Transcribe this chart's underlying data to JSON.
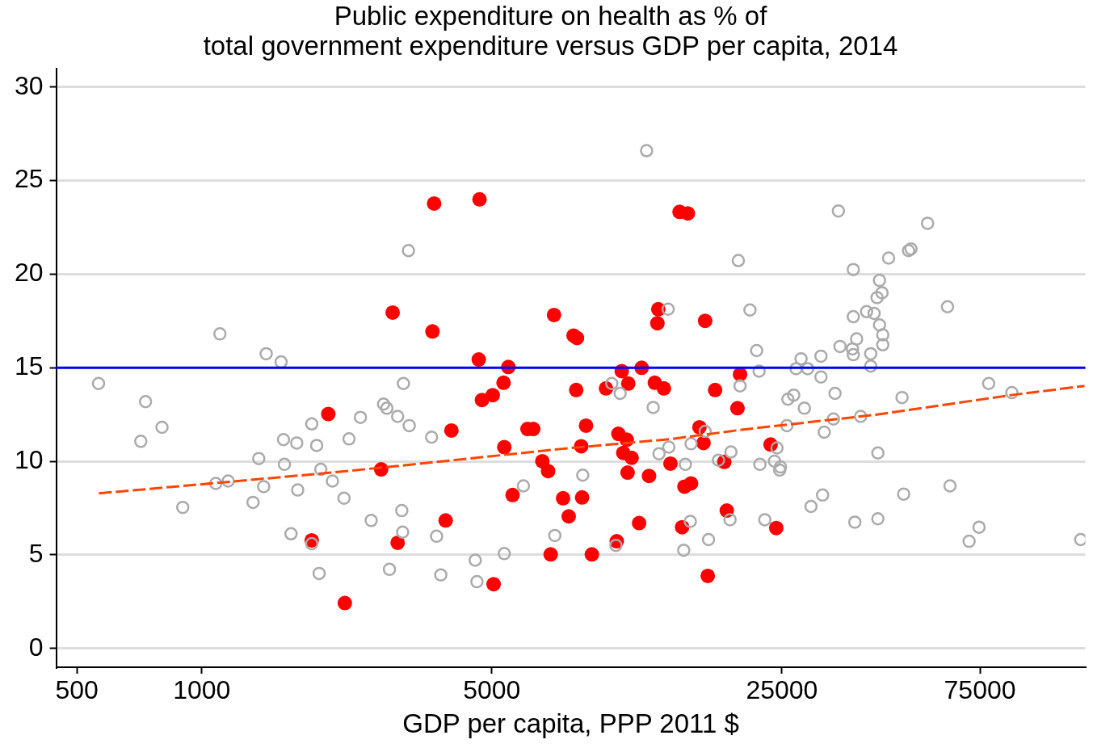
{
  "chart_data": {
    "type": "scatter",
    "title": "Public expenditure on health as % of\ntotal government expenditure versus GDP per capita, 2014",
    "xlabel": "GDP per capita, PPP 2011 $",
    "log": "x",
    "xlim": [
      446,
      134600
    ],
    "xticks": [
      500,
      1000,
      5000,
      25000,
      75000
    ],
    "ylim": [
      -1,
      31
    ],
    "yticks": [
      0,
      5,
      10,
      15,
      20,
      25,
      30
    ],
    "grid": "y",
    "legend": false,
    "marker": "circle",
    "ref_lines": [
      {
        "axis": "y",
        "value": 15,
        "color": "#0000ff"
      }
    ],
    "series": [
      {
        "color": "#aaaaaa",
        "x": [
          564,
          732,
          713,
          802,
          900,
          1081,
          1158,
          1106,
          1372,
          1410,
          1329,
          1430,
          1553,
          1574,
          1582,
          1641,
          1694,
          1703,
          1841,
          1841,
          1892,
          1936,
          1918,
          2065,
          2202,
          2264,
          2412,
          2560,
          2742,
          2793,
          2965,
          2833,
          3062,
          3034,
          3048,
          3162,
          3148,
          3580,
          3680,
          3767,
          4560,
          4603,
          5358,
          5957,
          7092,
          8279,
          9727,
          10190,
          9954,
          11800,
          12240,
          13350,
          12640,
          13300,
          15100,
          14630,
          16330,
          17580,
          18840,
          15040,
          16640,
          14500,
          18750,
          19820,
          19630,
          20940,
          21730,
          22030,
          27050,
          28840,
          31050,
          27800,
          31050,
          34200,
          56100,
          45190,
          50470,
          51170,
          37150,
          42960,
          43560,
          42390,
          62660,
          39990,
          41690,
          37150,
          42960,
          43750,
          43750,
          37840,
          34510,
          36980,
          37150,
          40920,
          40920,
          25840,
          26690,
          33570,
          48680,
          78740,
          89540,
          28320,
          25700,
          33270,
          38700,
          31620,
          24330,
          42580,
          22130,
          23990,
          24800,
          24690,
          22740,
          29380,
          31330,
          37470,
          42580,
          49130,
          63530,
          74640,
          70630,
          131200
        ],
        "values": [
          14.16,
          13.19,
          11.07,
          11.82,
          7.54,
          8.82,
          8.95,
          16.81,
          10.15,
          8.65,
          7.81,
          15.75,
          15.31,
          11.16,
          9.84,
          6.13,
          10.98,
          8.47,
          12.0,
          5.6,
          10.85,
          9.57,
          4.01,
          8.95,
          8.03,
          11.2,
          12.35,
          6.84,
          13.06,
          12.84,
          12.4,
          4.23,
          14.16,
          7.37,
          6.22,
          11.91,
          21.26,
          11.29,
          6.0,
          3.93,
          4.72,
          3.57,
          5.07,
          8.69,
          6.04,
          9.26,
          14.16,
          13.63,
          5.51,
          26.6,
          12.88,
          10.76,
          10.41,
          18.13,
          10.94,
          9.84,
          11.6,
          10.06,
          10.5,
          6.79,
          5.82,
          5.25,
          6.88,
          14.03,
          20.73,
          18.09,
          15.92,
          14.82,
          14.95,
          14.95,
          15.62,
          15.48,
          14.51,
          23.38,
          22.72,
          20.86,
          21.26,
          21.35,
          20.25,
          19.67,
          19.01,
          18.75,
          18.26,
          18.0,
          17.91,
          17.73,
          17.29,
          16.76,
          16.23,
          16.54,
          16.14,
          16.01,
          15.7,
          15.75,
          15.09,
          13.32,
          13.54,
          13.63,
          13.41,
          14.16,
          13.67,
          12.84,
          11.91,
          12.26,
          12.4,
          11.56,
          10.72,
          10.45,
          9.84,
          10.01,
          9.7,
          9.53,
          6.88,
          7.59,
          8.2,
          6.75,
          6.93,
          8.25,
          8.69,
          6.48,
          5.73,
          5.82
        ]
      },
      {
        "color": "#ff0000",
        "x": [
          2884,
          3630,
          4670,
          14170,
          14830,
          3597,
          7060,
          7870,
          8020,
          12590,
          12530,
          16330,
          4650,
          5480,
          10280,
          11480,
          19820,
          2018,
          2706,
          1841,
          2965,
          2212,
          5336,
          5025,
          4735,
          3996,
          5358,
          6095,
          6291,
          6617,
          6834,
          7985,
          8433,
          8210,
          9419,
          10660,
          12350,
          12990,
          17260,
          19540,
          10090,
          10570,
          10370,
          10860,
          10620,
          11960,
          13470,
          15820,
          16180,
          18160,
          14560,
          15100,
          5610,
          7424,
          8250,
          7660,
          3870,
          10000,
          11320,
          14370,
          18410,
          6930,
          8710,
          5050,
          16570,
          23480,
          24230
        ],
        "values": [
          17.95,
          23.78,
          24.0,
          23.33,
          23.25,
          16.94,
          17.82,
          16.72,
          16.59,
          18.13,
          17.38,
          17.51,
          15.44,
          15.04,
          14.82,
          15.0,
          14.65,
          12.53,
          9.57,
          5.78,
          5.65,
          2.43,
          14.2,
          13.54,
          13.28,
          11.65,
          10.76,
          11.73,
          11.73,
          10.01,
          9.48,
          13.81,
          11.91,
          10.81,
          13.9,
          14.16,
          14.2,
          13.9,
          13.81,
          12.84,
          11.47,
          11.16,
          10.45,
          10.19,
          9.4,
          9.22,
          9.88,
          11.82,
          10.98,
          9.97,
          8.65,
          8.82,
          8.2,
          8.03,
          8.07,
          7.06,
          6.84,
          5.73,
          6.7,
          6.48,
          7.37,
          5.03,
          5.03,
          3.44,
          3.88,
          10.9,
          6.44
        ]
      },
      {
        "type": "line",
        "color": "#ff4500",
        "marker": "none",
        "line_style": "dashed",
        "x": [
          565,
          1117,
          2055,
          2951,
          7390,
          13600,
          20000,
          41690,
          89130,
          134000
        ],
        "values": [
          8.29,
          8.87,
          9.4,
          9.75,
          10.67,
          11.2,
          11.69,
          12.48,
          13.54,
          14.03
        ]
      }
    ]
  }
}
